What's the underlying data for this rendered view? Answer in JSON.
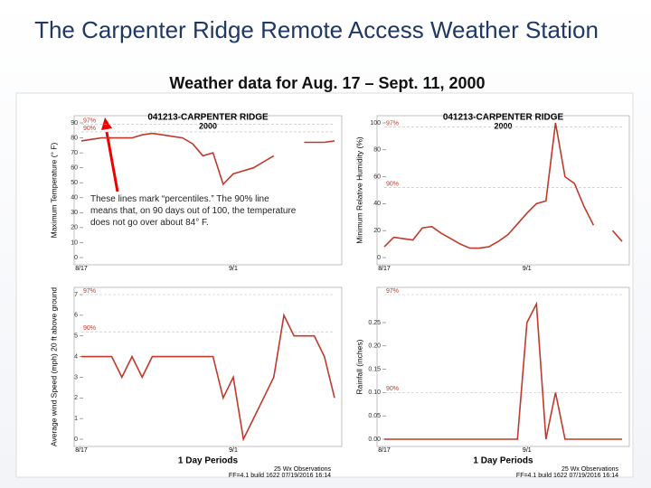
{
  "title": "The Carpenter Ridge Remote Access Weather Station",
  "subtitle": "Weather data for Aug. 17 – Sept. 11, 2000",
  "annotation": "These lines mark “percentiles.” The 90% line means that, on 90 days out of 100, the temperature does not go over about 84° F.",
  "chart_data": [
    {
      "type": "line",
      "title": "041213-CARPENTER RIDGE",
      "subtitle": "2000",
      "ylabel": "Maximum Temperature (° F)",
      "color": "#c0392b",
      "categories": [
        "8/17",
        null,
        null,
        null,
        null,
        null,
        null,
        null,
        null,
        null,
        null,
        null,
        null,
        null,
        null,
        "9/1",
        null,
        null,
        null,
        null,
        null,
        null,
        null,
        null,
        null,
        null
      ],
      "values": [
        78,
        79,
        80,
        80,
        80,
        80,
        82,
        83,
        82,
        81,
        80,
        76,
        68,
        70,
        49,
        56,
        58,
        60,
        64,
        68,
        null,
        null,
        77,
        77,
        77,
        78
      ],
      "ylim": [
        0,
        90
      ],
      "yticks": [
        0,
        10,
        20,
        30,
        40,
        50,
        60,
        70,
        80,
        90
      ],
      "reference_lines": [
        {
          "name": "97%",
          "value": 89
        },
        {
          "name": "90%",
          "value": 84
        }
      ]
    },
    {
      "type": "line",
      "title": "041213-CARPENTER RIDGE",
      "subtitle": "2000",
      "ylabel": "Minimum Relative Humidity (%)",
      "color": "#c0392b",
      "categories": [
        "8/17",
        null,
        null,
        null,
        null,
        null,
        null,
        null,
        null,
        null,
        null,
        null,
        null,
        null,
        null,
        "9/1",
        null,
        null,
        null,
        null,
        null,
        null,
        null,
        null,
        null,
        null
      ],
      "values": [
        8,
        15,
        14,
        13,
        22,
        23,
        18,
        14,
        10,
        7,
        7,
        8,
        12,
        17,
        25,
        33,
        40,
        42,
        100,
        60,
        55,
        38,
        24,
        null,
        20,
        12
      ],
      "ylim": [
        0,
        100
      ],
      "yticks": [
        0,
        20,
        40,
        60,
        80,
        100
      ],
      "reference_lines": [
        {
          "name": "97%",
          "value": 97
        },
        {
          "name": "90%",
          "value": 52
        }
      ]
    },
    {
      "type": "line",
      "ylabel": "Average wind Speed (mph) 20 ft above ground",
      "color": "#c0392b",
      "categories": [
        "8/17",
        null,
        null,
        null,
        null,
        null,
        null,
        null,
        null,
        null,
        null,
        null,
        null,
        null,
        null,
        "9/1",
        null,
        null,
        null,
        null,
        null,
        null,
        null,
        null,
        null,
        null
      ],
      "values": [
        4,
        4,
        4,
        4,
        3,
        4,
        3,
        4,
        4,
        4,
        4,
        4,
        4,
        4,
        2,
        3,
        0,
        1,
        2,
        3,
        6,
        5,
        5,
        5,
        4,
        2
      ],
      "ylim": [
        0,
        7
      ],
      "yticks": [
        0,
        1,
        2,
        3,
        4,
        5,
        6,
        7
      ],
      "reference_lines": [
        {
          "name": "97%",
          "value": 7
        },
        {
          "name": "90%",
          "value": 5.2
        }
      ],
      "period": "1 Day Periods",
      "observations": "25 Wx Observations",
      "build": "FF=4.1 build 1622 07/19/2016 16:14"
    },
    {
      "type": "line",
      "ylabel": "Rainfall (inches)",
      "color": "#c0392b",
      "categories": [
        "8/17",
        null,
        null,
        null,
        null,
        null,
        null,
        null,
        null,
        null,
        null,
        null,
        null,
        null,
        null,
        "9/1",
        null,
        null,
        null,
        null,
        null,
        null,
        null,
        null,
        null,
        null
      ],
      "values": [
        0,
        0,
        0,
        0,
        0,
        0,
        0,
        0,
        0,
        0,
        0,
        0,
        0,
        0,
        0,
        0.25,
        0.29,
        0,
        0.1,
        0,
        0,
        0,
        0,
        0,
        0,
        0
      ],
      "ylim": [
        0,
        0.31
      ],
      "yticks": [
        {
          "value": 0,
          "label": "0.00"
        },
        {
          "value": 0.05,
          "label": "0.05"
        },
        {
          "value": 0.1,
          "label": "0.10"
        },
        {
          "value": 0.15,
          "label": "0.15"
        },
        {
          "value": 0.2,
          "label": "0.20"
        },
        {
          "value": 0.25,
          "label": "0.25"
        }
      ],
      "reference_lines": [
        {
          "name": "97%",
          "value": 0.31
        },
        {
          "name": "90%",
          "value": 0.1
        }
      ],
      "period": "1 Day Periods",
      "observations": "25 Wx Observations",
      "build": "FF=4.1 build 1622 07/19/2016 16:14"
    }
  ]
}
